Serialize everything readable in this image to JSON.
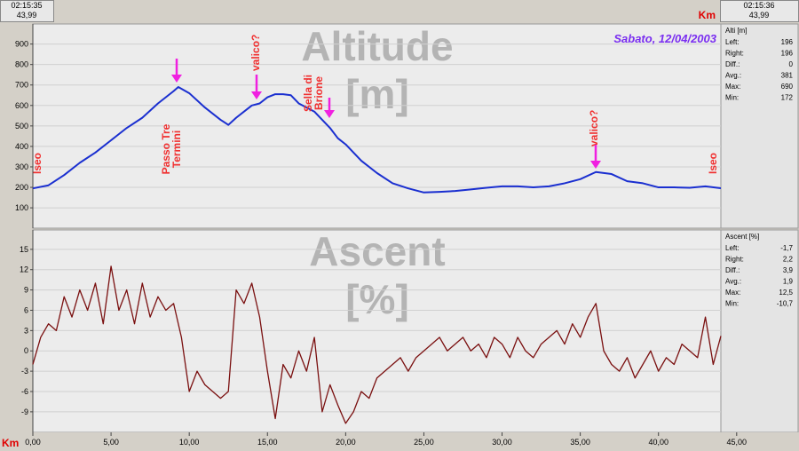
{
  "header": {
    "left_time": "02:15:35",
    "left_km": "43,99",
    "unit": "Km",
    "right_time": "02:15:36",
    "right_km": "43,99"
  },
  "chart_data": [
    {
      "type": "line",
      "subtitle": "Sabato, 12/04/2003",
      "watermark": [
        "Altitude",
        "[m]"
      ],
      "annotations": [
        [
          "Iseo"
        ],
        [
          "Passo Tre",
          "Termini"
        ],
        [
          "valico?"
        ],
        [
          "Sella di",
          "Brione"
        ],
        [
          "valico?"
        ],
        [
          "Iseo"
        ]
      ],
      "xlim": [
        0,
        43.99
      ],
      "ylim": [
        5,
        985
      ],
      "yticks": [
        100,
        200,
        300,
        400,
        500,
        600,
        700,
        800,
        900
      ],
      "grid": true,
      "x": [
        0,
        1,
        2,
        3,
        4,
        5,
        6,
        7,
        8,
        9,
        9.3,
        10,
        11,
        12,
        12.5,
        13,
        14,
        14.5,
        15,
        15.5,
        16,
        16.5,
        17,
        18,
        19,
        19.5,
        20,
        21,
        22,
        23,
        24,
        25,
        26,
        27,
        28,
        29,
        30,
        31,
        32,
        33,
        34,
        35,
        36,
        37,
        38,
        39,
        40,
        41,
        42,
        43,
        43.99
      ],
      "series": [
        {
          "name": "Alti [m]",
          "color": "#1a2fd0",
          "values": [
            195,
            210,
            260,
            320,
            370,
            430,
            490,
            540,
            610,
            670,
            690,
            660,
            590,
            530,
            505,
            540,
            600,
            610,
            640,
            655,
            655,
            650,
            610,
            570,
            490,
            440,
            410,
            330,
            270,
            220,
            195,
            175,
            178,
            182,
            190,
            198,
            205,
            205,
            200,
            205,
            220,
            240,
            275,
            265,
            230,
            220,
            200,
            200,
            198,
            205,
            196
          ]
        }
      ],
      "stats": [
        [
          "Left:",
          "196"
        ],
        [
          "Right:",
          "196"
        ],
        [
          "Diff.:",
          "0"
        ],
        [
          "Avg.:",
          "381"
        ],
        [
          "Max:",
          "690"
        ],
        [
          "Min:",
          "172"
        ]
      ]
    },
    {
      "type": "line",
      "watermark": [
        "Ascent",
        "[%]"
      ],
      "xlabel": "Km",
      "xlim": [
        0,
        43.99
      ],
      "ylim": [
        -11.9,
        17.6
      ],
      "yticks": [
        -9,
        -6,
        -3,
        0,
        3,
        6,
        9,
        12,
        15
      ],
      "grid": true,
      "xticks": [
        {
          "value": 0,
          "label": "0,00"
        },
        {
          "value": 5,
          "label": "5,00"
        },
        {
          "value": 10,
          "label": "10,00"
        },
        {
          "value": 15,
          "label": "15,00"
        },
        {
          "value": 20,
          "label": "20,00"
        },
        {
          "value": 25,
          "label": "25,00"
        },
        {
          "value": 30,
          "label": "30,00"
        },
        {
          "value": 35,
          "label": "35,00"
        },
        {
          "value": 40,
          "label": "40,00"
        },
        {
          "value": 45,
          "label": "45,00"
        }
      ],
      "x": [
        0,
        0.5,
        1,
        1.5,
        2,
        2.5,
        3,
        3.5,
        4,
        4.5,
        5,
        5.5,
        6,
        6.5,
        7,
        7.5,
        8,
        8.5,
        9,
        9.5,
        10,
        10.5,
        11,
        11.5,
        12,
        12.5,
        13,
        13.5,
        14,
        14.5,
        15,
        15.5,
        16,
        16.5,
        17,
        17.5,
        18,
        18.5,
        19,
        19.5,
        20,
        20.5,
        21,
        21.5,
        22,
        22.5,
        23,
        23.5,
        24,
        24.5,
        25,
        25.5,
        26,
        26.5,
        27,
        27.5,
        28,
        28.5,
        29,
        29.5,
        30,
        30.5,
        31,
        31.5,
        32,
        32.5,
        33,
        33.5,
        34,
        34.5,
        35,
        35.5,
        36,
        36.5,
        37,
        37.5,
        38,
        38.5,
        39,
        39.5,
        40,
        40.5,
        41,
        41.5,
        42,
        42.5,
        43,
        43.5,
        43.99
      ],
      "series": [
        {
          "name": "Ascent [%]",
          "color": "#7a1010",
          "values": [
            -2,
            2,
            4,
            3,
            8,
            5,
            9,
            6,
            10,
            4,
            12.5,
            6,
            9,
            4,
            10,
            5,
            8,
            6,
            7,
            2,
            -6,
            -3,
            -5,
            -6,
            -7,
            -6,
            9,
            7,
            10,
            5,
            -3,
            -10,
            -2,
            -4,
            0,
            -3,
            2,
            -9,
            -5,
            -8,
            -10.7,
            -9,
            -6,
            -7,
            -4,
            -3,
            -2,
            -1,
            -3,
            -1,
            0,
            1,
            2,
            0,
            1,
            2,
            0,
            1,
            -1,
            2,
            1,
            -1,
            2,
            0,
            -1,
            1,
            2,
            3,
            1,
            4,
            2,
            5,
            7,
            0,
            -2,
            -3,
            -1,
            -4,
            -2,
            0,
            -3,
            -1,
            -2,
            1,
            0,
            -1,
            5,
            -2,
            2.2
          ]
        }
      ],
      "stats": [
        [
          "Left:",
          "-1,7"
        ],
        [
          "Right:",
          "2,2"
        ],
        [
          "Diff.:",
          "3,9"
        ],
        [
          "Avg.:",
          "1,9"
        ],
        [
          "Max:",
          "12,5"
        ],
        [
          "Min:",
          "-10,7"
        ]
      ]
    }
  ]
}
